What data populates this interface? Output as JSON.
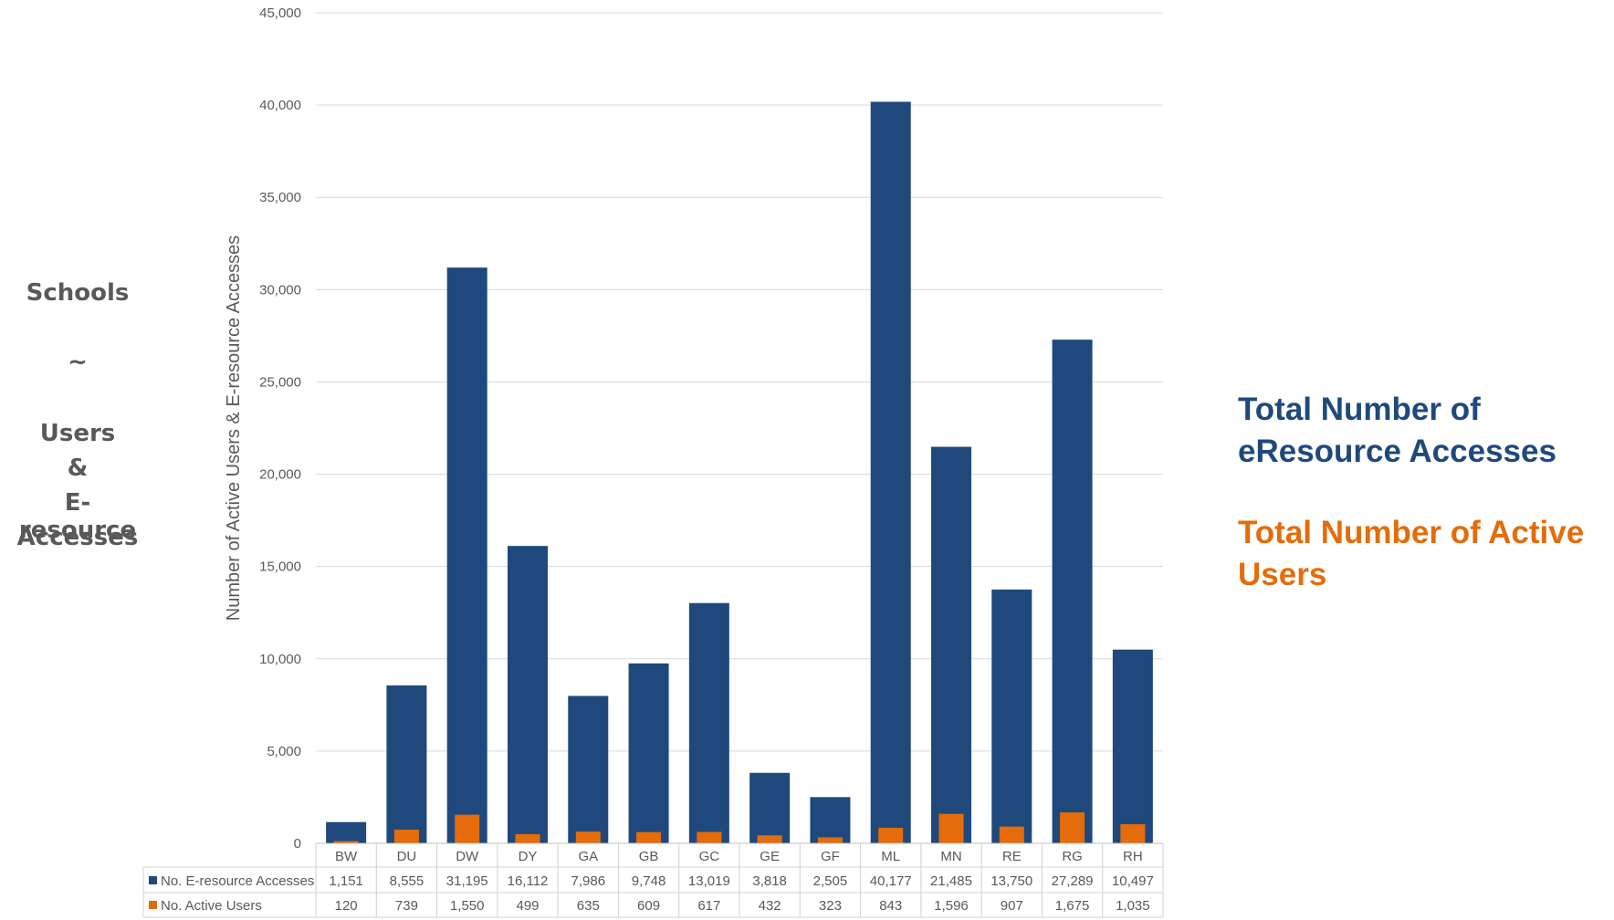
{
  "left_title": {
    "line1": "Schools",
    "line2": "~",
    "line3": "Users",
    "line4": "&",
    "line5": "E-resource",
    "line6": "Accesses"
  },
  "right_legend": {
    "accesses_line1": "Total Number of",
    "accesses_line2": "eResource Accesses",
    "users_line1": "Total Number of Active",
    "users_line2": "Users"
  },
  "colors": {
    "accesses": "#1f497d",
    "users": "#e46c0a",
    "grid": "#d9d9d9",
    "text": "#595959"
  },
  "chart_data": {
    "type": "bar",
    "ylabel": "Number of Active Users & E-resource Accesses",
    "ylim": [
      0,
      45000
    ],
    "yticks": [
      "0",
      "5,000",
      "10,000",
      "15,000",
      "20,000",
      "25,000",
      "30,000",
      "35,000",
      "40,000",
      "45,000"
    ],
    "grid": true,
    "categories": [
      "BW",
      "DU",
      "DW",
      "DY",
      "GA",
      "GB",
      "GC",
      "GE",
      "GF",
      "ML",
      "MN",
      "RE",
      "RG",
      "RH"
    ],
    "series": [
      {
        "name": "No. E-resource Accesses",
        "values": [
          1151,
          8555,
          31195,
          16112,
          7986,
          9748,
          13019,
          3818,
          2505,
          40177,
          21485,
          13750,
          27289,
          10497
        ],
        "labels": [
          "1,151",
          "8,555",
          "31,195",
          "16,112",
          "7,986",
          "9,748",
          "13,019",
          "3,818",
          "2,505",
          "40,177",
          "21,485",
          "13,750",
          "27,289",
          "10,497"
        ]
      },
      {
        "name": "No. Active Users",
        "values": [
          120,
          739,
          1550,
          499,
          635,
          609,
          617,
          432,
          323,
          843,
          1596,
          907,
          1675,
          1035
        ],
        "labels": [
          "120",
          "739",
          "1,550",
          "499",
          "635",
          "609",
          "617",
          "432",
          "323",
          "843",
          "1,596",
          "907",
          "1,675",
          "1,035"
        ]
      }
    ]
  }
}
